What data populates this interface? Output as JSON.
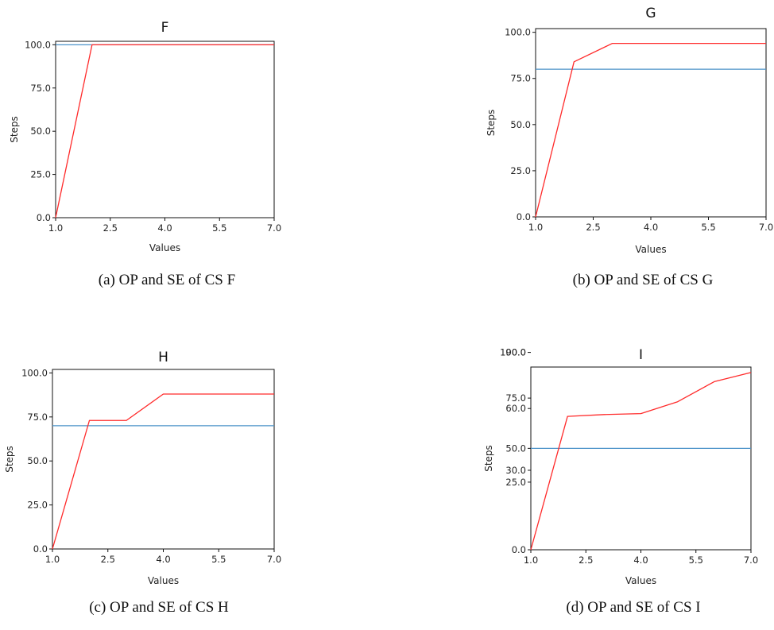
{
  "chart_data": [
    {
      "type": "line",
      "title": "F",
      "xlabel": "Values",
      "ylabel": "Steps",
      "xlim": [
        1.0,
        7.0
      ],
      "ylim": [
        0,
        102
      ],
      "x_ticks": [
        "1.0",
        "2.5",
        "4.0",
        "5.5",
        "7.0"
      ],
      "y_ticks": [
        "0.0",
        "25.0",
        "50.0",
        "75.0",
        "100.0"
      ],
      "grid": false,
      "series": [
        {
          "color": "#ff2a2a",
          "x": [
            1,
            2,
            3,
            4,
            5,
            6,
            7
          ],
          "y": [
            0,
            100,
            100,
            100,
            100,
            100,
            100
          ]
        },
        {
          "color": "#4c93c9",
          "x": [
            1,
            7
          ],
          "y": [
            100,
            100
          ]
        }
      ],
      "caption": "(a) OP and SE of CS F"
    },
    {
      "type": "line",
      "title": "G",
      "xlabel": "Values",
      "ylabel": "Steps",
      "xlim": [
        1.0,
        7.0
      ],
      "ylim": [
        0,
        102
      ],
      "x_ticks": [
        "1.0",
        "2.5",
        "4.0",
        "5.5",
        "7.0"
      ],
      "y_ticks": [
        "0.0",
        "25.0",
        "50.0",
        "75.0",
        "100.0"
      ],
      "grid": false,
      "series": [
        {
          "color": "#ff2a2a",
          "x": [
            1,
            2,
            3,
            4,
            5,
            6,
            7
          ],
          "y": [
            0,
            84,
            94,
            94,
            94,
            94,
            94
          ]
        },
        {
          "color": "#4c93c9",
          "x": [
            1,
            7
          ],
          "y": [
            80,
            80
          ]
        }
      ],
      "caption": "(b) OP and SE of CS G"
    },
    {
      "type": "line",
      "title": "H",
      "xlabel": "Values",
      "ylabel": "Steps",
      "xlim": [
        1.0,
        7.0
      ],
      "ylim": [
        0,
        102
      ],
      "x_ticks": [
        "1.0",
        "2.5",
        "4.0",
        "5.5",
        "7.0"
      ],
      "y_ticks": [
        "0.0",
        "25.0",
        "50.0",
        "75.0",
        "100.0"
      ],
      "grid": false,
      "series": [
        {
          "color": "#ff2a2a",
          "x": [
            1,
            2,
            3,
            4,
            5,
            6,
            7
          ],
          "y": [
            0,
            73,
            73,
            88,
            88,
            88,
            88
          ]
        },
        {
          "color": "#4c93c9",
          "x": [
            1,
            7
          ],
          "y": [
            70,
            70
          ]
        }
      ],
      "caption": "(c) OP and SE of CS H"
    },
    {
      "type": "line",
      "title": "I",
      "xlabel": "Values",
      "ylabel": "Steps",
      "xlim": [
        1.0,
        7.0
      ],
      "ylim": [
        0,
        100
      ],
      "x_ticks": [
        "1.0",
        "2.5",
        "4.0",
        "5.5",
        "7.0"
      ],
      "y_ticks": [
        "0.0",
        "25.0",
        "30.0",
        "50.0",
        "60.0",
        "75.0",
        "100.0"
      ],
      "y_tick_overlap_labels": [
        "90.0"
      ],
      "y_tick_values": [
        0,
        37,
        43.5,
        55.5,
        77.3,
        83,
        108
      ],
      "grid": false,
      "series": [
        {
          "color": "#ff2a2a",
          "x": [
            1,
            2,
            3,
            4,
            5,
            6,
            7
          ],
          "y": [
            0,
            73,
            74,
            74.5,
            81,
            92,
            97
          ]
        },
        {
          "color": "#4c93c9",
          "x": [
            1,
            7
          ],
          "y": [
            55.5,
            55.5
          ]
        }
      ],
      "caption": "(d) OP and SE of CS I"
    }
  ]
}
